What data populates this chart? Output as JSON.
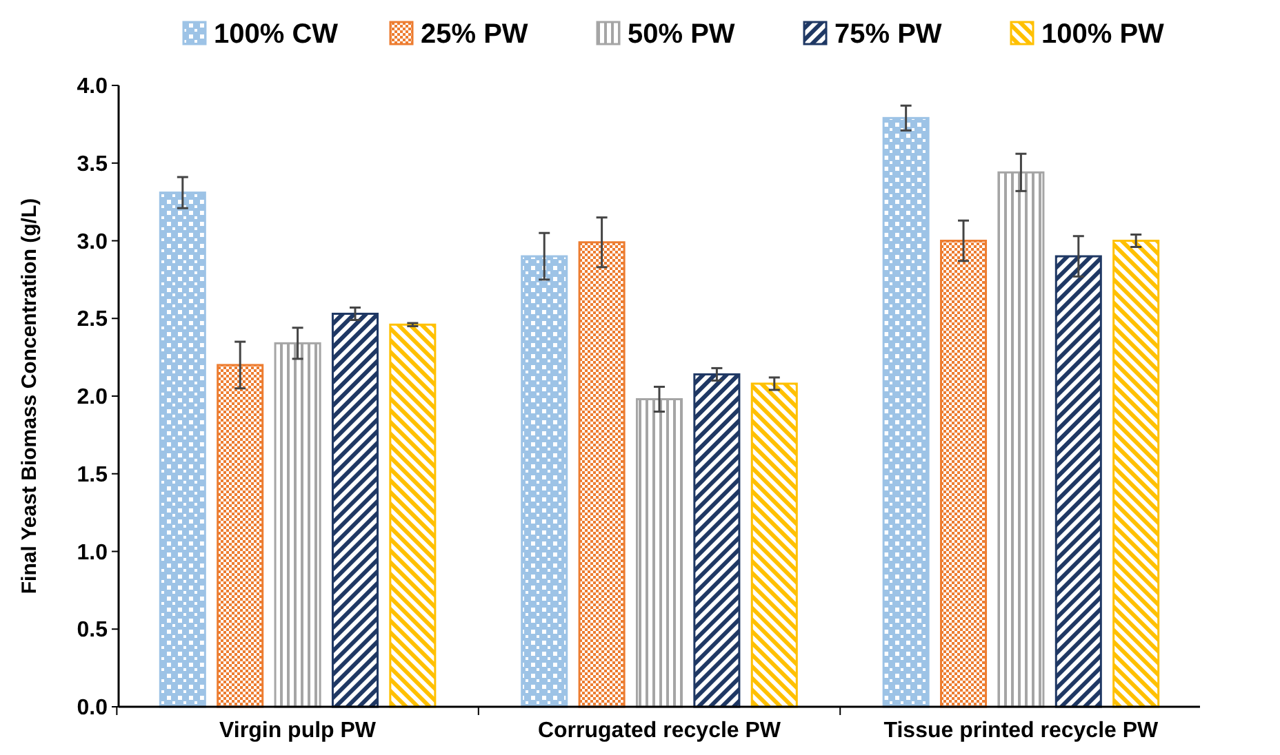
{
  "chart_data": {
    "type": "bar",
    "ylabel": "Final Yeast Biomass Concentration (g/L)",
    "categories": [
      "Virgin pulp PW",
      "Corrugated recycle PW",
      "Tissue printed recycle PW"
    ],
    "series": [
      {
        "name": "100% CW",
        "color": "#9dc3e6",
        "values": [
          3.31,
          2.9,
          3.79
        ],
        "errors": [
          0.1,
          0.15,
          0.08
        ]
      },
      {
        "name": "25% PW",
        "color": "#ed7d31",
        "values": [
          2.2,
          2.99,
          3.0
        ],
        "errors": [
          0.15,
          0.16,
          0.13
        ]
      },
      {
        "name": "50% PW",
        "color": "#a5a5a5",
        "values": [
          2.34,
          1.98,
          3.44
        ],
        "errors": [
          0.1,
          0.08,
          0.12
        ]
      },
      {
        "name": "75% PW",
        "color": "#1f3864",
        "values": [
          2.53,
          2.14,
          2.9
        ],
        "errors": [
          0.04,
          0.04,
          0.13
        ]
      },
      {
        "name": "100% PW",
        "color": "#ffc000",
        "values": [
          2.46,
          2.08,
          3.0
        ],
        "errors": [
          0.01,
          0.04,
          0.04
        ]
      }
    ],
    "ylim": [
      0,
      4
    ],
    "yticks": [
      {
        "value": 0,
        "label": "0.0"
      },
      {
        "value": 0.5,
        "label": "0.5"
      },
      {
        "value": 1,
        "label": "1.0"
      },
      {
        "value": 1.5,
        "label": "1.5"
      },
      {
        "value": 2,
        "label": "2.0"
      },
      {
        "value": 2.5,
        "label": "2.5"
      },
      {
        "value": 3,
        "label": "3.0"
      },
      {
        "value": 3.5,
        "label": "3.5"
      },
      {
        "value": 4,
        "label": "4.0"
      }
    ],
    "grid": false,
    "legend": "top"
  }
}
